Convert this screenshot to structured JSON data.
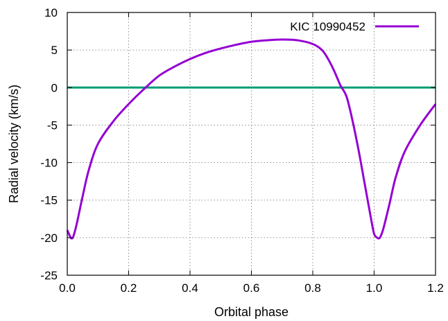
{
  "chart_data": {
    "type": "line",
    "title": "",
    "xlabel": "Orbital phase",
    "ylabel": "Radial velocity (km/s)",
    "xlim": [
      0.0,
      1.2
    ],
    "ylim": [
      -25,
      10
    ],
    "x_ticks": [
      "0.0",
      "0.2",
      "0.4",
      "0.6",
      "0.8",
      "1.0",
      "1.2"
    ],
    "y_ticks": [
      "10",
      "5",
      "0",
      "-5",
      "-10",
      "-15",
      "-20",
      "-25"
    ],
    "grid": "dotted",
    "legend_position": "top-right",
    "colors": {
      "series": "#9400d3",
      "zero_line": "#009e73"
    },
    "series": [
      {
        "name": "KIC 10990452",
        "x": [
          0.0,
          0.01,
          0.015,
          0.02,
          0.03,
          0.05,
          0.07,
          0.1,
          0.15,
          0.2,
          0.25,
          0.3,
          0.35,
          0.4,
          0.45,
          0.5,
          0.55,
          0.6,
          0.65,
          0.7,
          0.75,
          0.8,
          0.83,
          0.85,
          0.87,
          0.89,
          0.91,
          0.93,
          0.95,
          0.97,
          0.99,
          1.0,
          1.01,
          1.015,
          1.02,
          1.03,
          1.05,
          1.07,
          1.1,
          1.15,
          1.2
        ],
        "y": [
          -19.0,
          -19.9,
          -20.1,
          -19.8,
          -18.3,
          -14.5,
          -11.0,
          -7.5,
          -4.5,
          -2.2,
          -0.2,
          1.6,
          2.8,
          3.8,
          4.6,
          5.2,
          5.7,
          6.1,
          6.3,
          6.4,
          6.3,
          5.8,
          5.0,
          3.8,
          2.2,
          0.3,
          -1.2,
          -4.5,
          -8.5,
          -13.0,
          -17.5,
          -19.5,
          -20.0,
          -20.1,
          -19.9,
          -18.8,
          -15.5,
          -12.0,
          -8.5,
          -5.0,
          -2.2
        ]
      }
    ],
    "reference_lines": [
      {
        "y": 0
      }
    ]
  }
}
